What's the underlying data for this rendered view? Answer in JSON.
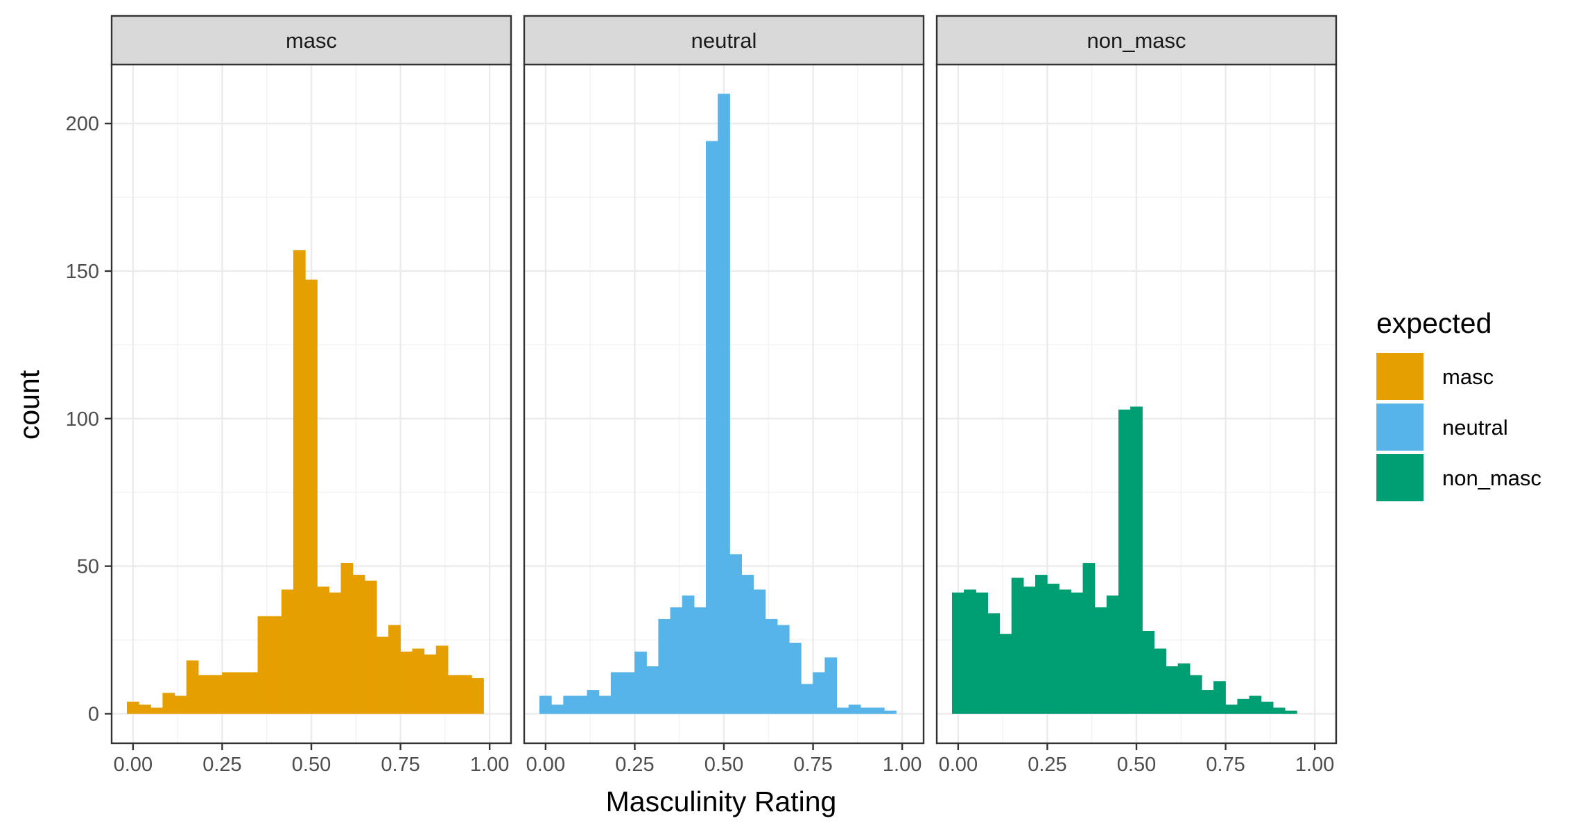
{
  "chart_data": {
    "type": "bar",
    "subtype": "faceted-histogram",
    "xlabel": "Masculinity Rating",
    "ylabel": "count",
    "xlim": [
      -0.06,
      1.06
    ],
    "ylim": [
      -10,
      220
    ],
    "x_ticks": [
      0,
      0.25,
      0.5,
      0.75,
      1.0
    ],
    "x_tick_labels": [
      "0.00",
      "0.25",
      "0.50",
      "0.75",
      "1.00"
    ],
    "y_ticks": [
      0,
      50,
      100,
      150,
      200
    ],
    "y_tick_labels": [
      "0",
      "50",
      "100",
      "150",
      "200"
    ],
    "grid": true,
    "bin_width": 0.0333,
    "facets": [
      {
        "label": "masc",
        "color": "#E69F00",
        "x": [
          0.0,
          0.0333,
          0.0667,
          0.1,
          0.1333,
          0.1667,
          0.2,
          0.2333,
          0.2667,
          0.3,
          0.3333,
          0.3667,
          0.4,
          0.4333,
          0.4667,
          0.5,
          0.5333,
          0.5667,
          0.6,
          0.6333,
          0.6667,
          0.7,
          0.7333,
          0.7667,
          0.8,
          0.8333,
          0.8667,
          0.9,
          0.9333,
          0.9667,
          1.0
        ],
        "values": [
          4,
          3,
          2,
          7,
          6,
          18,
          13,
          13,
          14,
          14,
          14,
          33,
          33,
          42,
          157,
          147,
          43,
          41,
          51,
          47,
          45,
          26,
          30,
          21,
          22,
          20,
          23,
          13,
          13,
          12,
          0
        ]
      },
      {
        "label": "neutral",
        "color": "#56B4E9",
        "x": [
          0.0,
          0.0333,
          0.0667,
          0.1,
          0.1333,
          0.1667,
          0.2,
          0.2333,
          0.2667,
          0.3,
          0.3333,
          0.3667,
          0.4,
          0.4333,
          0.4667,
          0.5,
          0.5333,
          0.5667,
          0.6,
          0.6333,
          0.6667,
          0.7,
          0.7333,
          0.7667,
          0.8,
          0.8333,
          0.8667,
          0.9,
          0.9333,
          0.9667,
          1.0
        ],
        "values": [
          6,
          3,
          6,
          6,
          8,
          6,
          14,
          14,
          21,
          16,
          32,
          36,
          40,
          36,
          194,
          210,
          54,
          47,
          42,
          32,
          30,
          24,
          10,
          14,
          19,
          2,
          3,
          2,
          2,
          1,
          0
        ]
      },
      {
        "label": "non_masc",
        "color": "#009E73",
        "x": [
          0.0,
          0.0333,
          0.0667,
          0.1,
          0.1333,
          0.1667,
          0.2,
          0.2333,
          0.2667,
          0.3,
          0.3333,
          0.3667,
          0.4,
          0.4333,
          0.4667,
          0.5,
          0.5333,
          0.5667,
          0.6,
          0.6333,
          0.6667,
          0.7,
          0.7333,
          0.7667,
          0.8,
          0.8333,
          0.8667,
          0.9,
          0.9333,
          0.9667,
          1.0
        ],
        "values": [
          41,
          42,
          41,
          34,
          27,
          46,
          43,
          47,
          44,
          42,
          41,
          51,
          36,
          40,
          103,
          104,
          28,
          22,
          16,
          17,
          13,
          8,
          11,
          3,
          5,
          6,
          4,
          2,
          1,
          0,
          0
        ]
      }
    ],
    "legend": {
      "title": "expected",
      "position": "right",
      "entries": [
        {
          "label": "masc",
          "color": "#E69F00"
        },
        {
          "label": "neutral",
          "color": "#56B4E9"
        },
        {
          "label": "non_masc",
          "color": "#009E73"
        }
      ]
    }
  }
}
